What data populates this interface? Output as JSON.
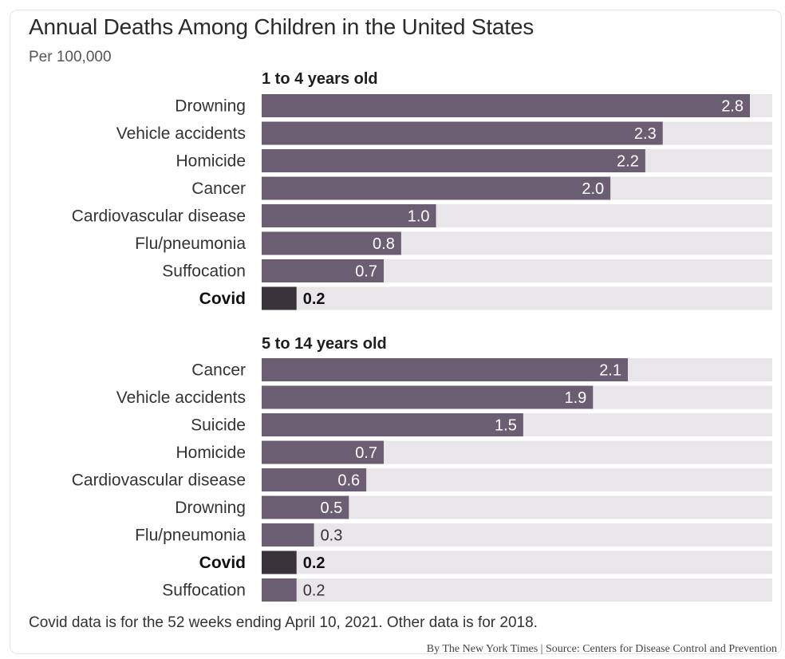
{
  "title": "Annual Deaths Among Children in the United States",
  "subtitle": "Per 100,000",
  "footnote": "Covid data is for the 52 weeks ending April 10, 2021. Other data is for 2018.",
  "credit": "By The New York Times | Source: Centers for Disease Control and Prevention",
  "colors": {
    "bar": "#6b5e72",
    "covid_bar": "#3a3339",
    "track": "#e8e6e8",
    "label": "#333333",
    "value_on_bar": "#ffffff"
  },
  "chart_data": [
    {
      "type": "bar",
      "orientation": "horizontal",
      "title": "1 to 4 years old",
      "xlim": [
        0,
        2.8
      ],
      "grid": false,
      "categories": [
        "Drowning",
        "Vehicle accidents",
        "Homicide",
        "Cancer",
        "Cardiovascular disease",
        "Flu/pneumonia",
        "Suffocation",
        "Covid"
      ],
      "values": [
        2.8,
        2.3,
        2.2,
        2.0,
        1.0,
        0.8,
        0.7,
        0.2
      ],
      "value_labels": [
        "2.8",
        "2.3",
        "2.2",
        "2.0",
        "1.0",
        "0.8",
        "0.7",
        "0.2"
      ],
      "highlight": "Covid"
    },
    {
      "type": "bar",
      "orientation": "horizontal",
      "title": "5 to 14 years old",
      "xlim": [
        0,
        2.8
      ],
      "grid": false,
      "categories": [
        "Cancer",
        "Vehicle accidents",
        "Suicide",
        "Homicide",
        "Cardiovascular disease",
        "Drowning",
        "Flu/pneumonia",
        "Covid",
        "Suffocation"
      ],
      "values": [
        2.1,
        1.9,
        1.5,
        0.7,
        0.6,
        0.5,
        0.3,
        0.2,
        0.2
      ],
      "value_labels": [
        "2.1",
        "1.9",
        "1.5",
        "0.7",
        "0.6",
        "0.5",
        "0.3",
        "0.2",
        "0.2"
      ],
      "highlight": "Covid"
    }
  ]
}
